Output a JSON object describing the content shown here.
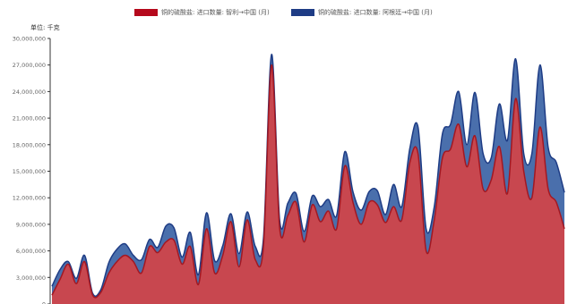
{
  "legend": {
    "items": [
      {
        "label": "铜的硫酸盐: 进口数量: 智利→中国 (月)",
        "color": "#b5091c"
      },
      {
        "label": "铜的硫酸盐: 进口数量: 阿根廷→中国 (月)",
        "color": "#1e3c85"
      }
    ]
  },
  "unit_label": "单位: 千克",
  "chart_data": {
    "type": "area",
    "stacked": true,
    "ylim": [
      0,
      30000000
    ],
    "yticks": [
      "0",
      "3,000,000",
      "6,000,000",
      "9,000,000",
      "12,000,000",
      "15,000,000",
      "18,000,000",
      "21,000,000",
      "24,000,000",
      "27,000,000",
      "30,000,000"
    ],
    "grid": false,
    "legend_position": "top-center",
    "series": [
      {
        "name": "铜的硫酸盐: 进口数量: 智利→中国 (月)",
        "color": "#c8474f",
        "values": [
          1000000,
          2800000,
          4500000,
          2300000,
          4800000,
          1000000,
          1300000,
          3500000,
          4800000,
          5500000,
          4800000,
          3500000,
          6500000,
          5800000,
          7000000,
          7200000,
          4500000,
          6500000,
          2200000,
          8500000,
          3500000,
          5500000,
          9300000,
          4200000,
          9500000,
          5000000,
          6500000,
          27000000,
          8500000,
          10000000,
          11500000,
          7000000,
          11200000,
          9300000,
          10500000,
          8500000,
          15600000,
          11500000,
          9000000,
          11500000,
          11200000,
          9200000,
          11000000,
          9500000,
          16000000,
          17000000,
          6000000,
          9500000,
          16500000,
          17500000,
          20300000,
          15500000,
          19000000,
          13000000,
          14000000,
          17800000,
          12500000,
          23200000,
          15000000,
          12000000,
          20000000,
          13000000,
          11500000,
          8500000
        ]
      },
      {
        "name": "铜的硫酸盐: 进口数量: 阿根廷→中国 (月)",
        "color": "#4a6fac",
        "values": [
          1000000,
          1100000,
          300000,
          600000,
          700000,
          200000,
          300000,
          1200000,
          1400000,
          1300000,
          700000,
          1500000,
          800000,
          600000,
          1800000,
          1400000,
          800000,
          1600000,
          1100000,
          1800000,
          1400000,
          1100000,
          900000,
          1500000,
          900000,
          1500000,
          900000,
          1200000,
          900000,
          1400000,
          1000000,
          1200000,
          1000000,
          1700000,
          1300000,
          1500000,
          1600000,
          1200000,
          1600000,
          1200000,
          1600000,
          900000,
          2500000,
          1500000,
          1600000,
          3000000,
          2500000,
          1500000,
          2700000,
          2800000,
          3700000,
          2500000,
          4900000,
          4000000,
          2500000,
          4800000,
          6000000,
          4500000,
          2000000,
          5000000,
          7000000,
          4700000,
          4500000,
          4100000
        ]
      }
    ]
  }
}
